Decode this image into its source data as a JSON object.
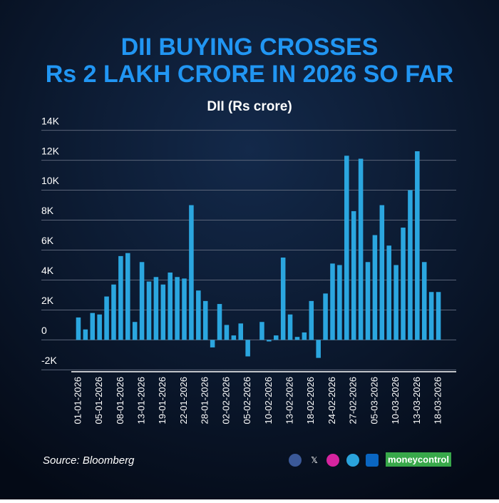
{
  "chart_data": {
    "type": "bar",
    "title": [
      "DII BUYING CROSSES",
      "Rs 2 LAKH CRORE IN 2026 SO FAR"
    ],
    "subtitle": "DII (Rs crore)",
    "source": "Source: Bloomberg",
    "brand": "moneycontrol",
    "color": "#2ba6df",
    "grid": true,
    "categories": [
      "01-01-2026",
      null,
      null,
      "05-01-2026",
      null,
      null,
      "08-01-2026",
      null,
      null,
      "13-01-2026",
      null,
      null,
      "19-01-2026",
      null,
      null,
      "22-01-2026",
      null,
      null,
      "28-01-2026",
      null,
      null,
      "02-02-2026",
      null,
      null,
      "05-02-2026",
      null,
      null,
      "10-02-2026",
      null,
      null,
      "13-02-2026",
      null,
      null,
      "18-02-2026",
      null,
      null,
      "24-02-2026",
      null,
      null,
      "27-02-2026",
      null,
      null,
      "05-03-2026",
      null,
      null,
      "10-03-2026",
      null,
      null,
      "13-03-2026",
      null,
      null,
      "18-03-2026"
    ],
    "values": [
      1500,
      700,
      1800,
      1700,
      2900,
      3700,
      5600,
      5800,
      1200,
      5200,
      3900,
      4200,
      3700,
      4500,
      4200,
      4100,
      9000,
      3300,
      2600,
      -500,
      2400,
      1000,
      300,
      1100,
      -1100,
      0,
      1200,
      -100,
      300,
      5500,
      1700,
      200,
      500,
      2600,
      -1200,
      3100,
      5100,
      5000,
      12300,
      8600,
      12100,
      5200,
      7000,
      9000,
      6300,
      5000,
      7500,
      10000,
      12600,
      5200,
      3200,
      3200
    ],
    "ylim": [
      -2600,
      14600
    ],
    "yticks": [
      {
        "value": -2000,
        "label": "-2K"
      },
      0,
      {
        "value": 2000,
        "label": "2K"
      },
      {
        "value": 4000,
        "label": "4K"
      },
      {
        "value": 6000,
        "label": "6K"
      },
      {
        "value": 8000,
        "label": "8K"
      },
      {
        "value": 10000,
        "label": "10K"
      },
      {
        "value": 12000,
        "label": "12K"
      },
      {
        "value": 14000,
        "label": "14K"
      }
    ]
  }
}
